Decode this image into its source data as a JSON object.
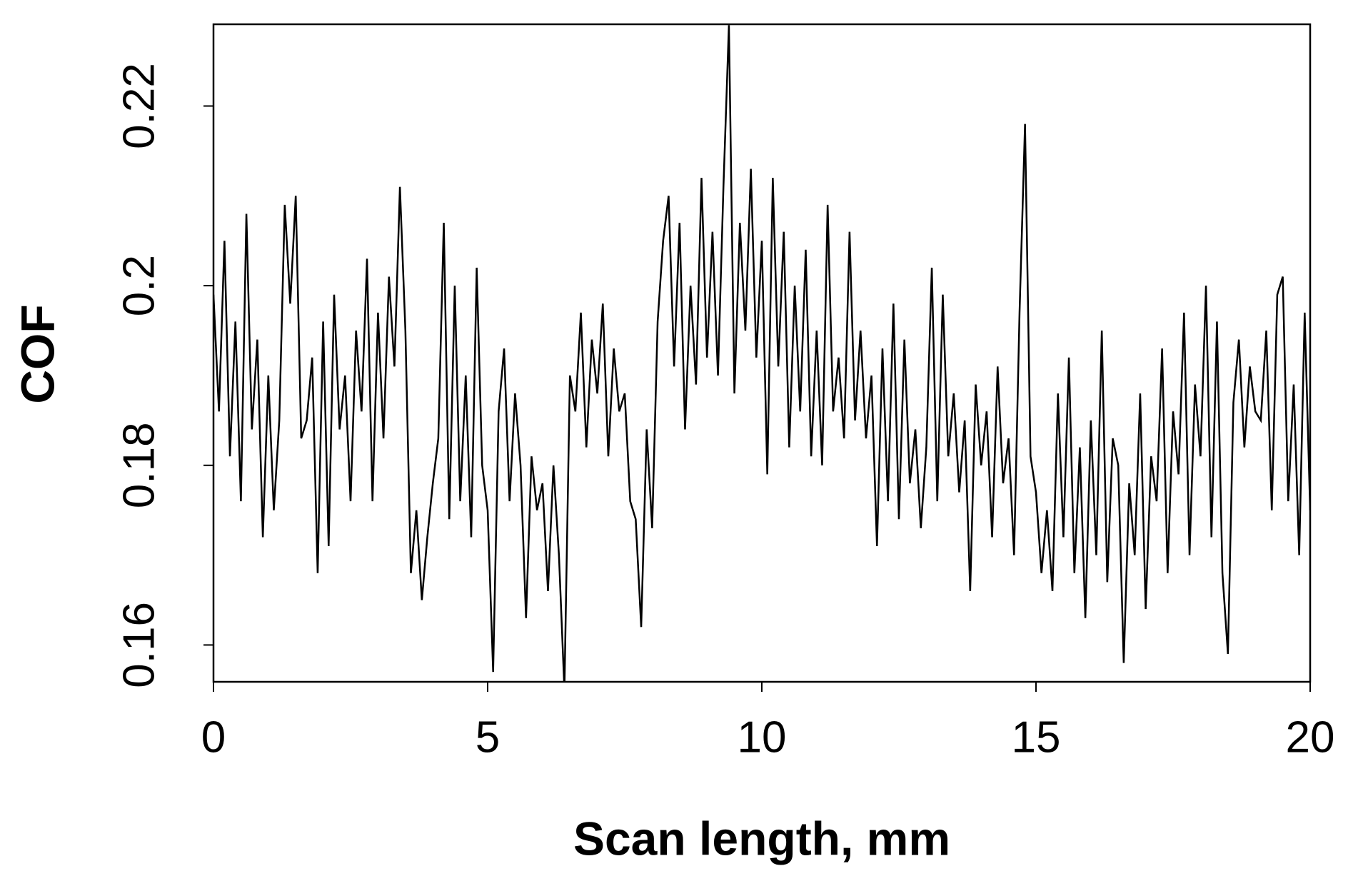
{
  "chart_data": {
    "type": "line",
    "x_label": "Scan length, mm",
    "y_label": "COF",
    "xlim": [
      0,
      20
    ],
    "xticks": [
      0,
      5,
      10,
      15,
      20
    ],
    "ylim": [
      0.1559,
      0.2291
    ],
    "yticks": [
      0.16,
      0.18,
      0.2,
      0.22
    ],
    "color": "#000000",
    "x": [
      0,
      0.1,
      0.2,
      0.3,
      0.4,
      0.5,
      0.6,
      0.7,
      0.8,
      0.9,
      1,
      1.1,
      1.2,
      1.3,
      1.4,
      1.5,
      1.6,
      1.7,
      1.8,
      1.9,
      2,
      2.1,
      2.2,
      2.3,
      2.4,
      2.5,
      2.6,
      2.7,
      2.8,
      2.9,
      3,
      3.1,
      3.2,
      3.3,
      3.4,
      3.5,
      3.6,
      3.7,
      3.8,
      3.9,
      4,
      4.1,
      4.2,
      4.3,
      4.4,
      4.5,
      4.6,
      4.7,
      4.8,
      4.9,
      5,
      5.1,
      5.2,
      5.3,
      5.4,
      5.5,
      5.6,
      5.7,
      5.8,
      5.9,
      6,
      6.1,
      6.2,
      6.3,
      6.4,
      6.5,
      6.6,
      6.7,
      6.8,
      6.9,
      7,
      7.1,
      7.2,
      7.3,
      7.4,
      7.5,
      7.6,
      7.7,
      7.8,
      7.9,
      8,
      8.1,
      8.2,
      8.3,
      8.4,
      8.5,
      8.6,
      8.7,
      8.8,
      8.9,
      9,
      9.1,
      9.2,
      9.3,
      9.4,
      9.5,
      9.6,
      9.7,
      9.8,
      9.9,
      10,
      10.1,
      10.2,
      10.3,
      10.4,
      10.5,
      10.6,
      10.7,
      10.8,
      10.9,
      11,
      11.1,
      11.2,
      11.3,
      11.4,
      11.5,
      11.6,
      11.7,
      11.8,
      11.9,
      12,
      12.1,
      12.2,
      12.3,
      12.4,
      12.5,
      12.6,
      12.7,
      12.8,
      12.9,
      13,
      13.1,
      13.2,
      13.3,
      13.4,
      13.5,
      13.6,
      13.7,
      13.8,
      13.9,
      14,
      14.1,
      14.2,
      14.3,
      14.4,
      14.5,
      14.6,
      14.7,
      14.8,
      14.9,
      15,
      15.1,
      15.2,
      15.3,
      15.4,
      15.5,
      15.6,
      15.7,
      15.8,
      15.9,
      16,
      16.1,
      16.2,
      16.3,
      16.4,
      16.5,
      16.6,
      16.7,
      16.8,
      16.9,
      17,
      17.1,
      17.2,
      17.3,
      17.4,
      17.5,
      17.6,
      17.7,
      17.8,
      17.9,
      18,
      18.1,
      18.2,
      18.3,
      18.4,
      18.5,
      18.6,
      18.7,
      18.8,
      18.9,
      19,
      19.1,
      19.2,
      19.3,
      19.4,
      19.5,
      19.6,
      19.7,
      19.8,
      19.9,
      20
    ],
    "values": [
      0.199,
      0.186,
      0.205,
      0.181,
      0.196,
      0.176,
      0.208,
      0.184,
      0.194,
      0.172,
      0.19,
      0.175,
      0.185,
      0.209,
      0.198,
      0.21,
      0.183,
      0.185,
      0.192,
      0.168,
      0.196,
      0.171,
      0.199,
      0.184,
      0.19,
      0.176,
      0.195,
      0.186,
      0.203,
      0.176,
      0.197,
      0.183,
      0.201,
      0.191,
      0.211,
      0.195,
      0.168,
      0.175,
      0.165,
      0.172,
      0.178,
      0.183,
      0.207,
      0.174,
      0.2,
      0.176,
      0.19,
      0.172,
      0.202,
      0.18,
      0.175,
      0.157,
      0.186,
      0.193,
      0.176,
      0.188,
      0.18,
      0.163,
      0.181,
      0.175,
      0.178,
      0.166,
      0.18,
      0.17,
      0.155,
      0.19,
      0.186,
      0.197,
      0.182,
      0.194,
      0.188,
      0.198,
      0.181,
      0.193,
      0.186,
      0.188,
      0.176,
      0.174,
      0.162,
      0.184,
      0.173,
      0.196,
      0.205,
      0.21,
      0.191,
      0.207,
      0.184,
      0.2,
      0.189,
      0.212,
      0.192,
      0.206,
      0.19,
      0.211,
      0.229,
      0.188,
      0.207,
      0.195,
      0.213,
      0.192,
      0.205,
      0.179,
      0.212,
      0.191,
      0.206,
      0.182,
      0.2,
      0.186,
      0.204,
      0.181,
      0.195,
      0.18,
      0.209,
      0.186,
      0.192,
      0.183,
      0.206,
      0.185,
      0.195,
      0.183,
      0.19,
      0.171,
      0.193,
      0.176,
      0.198,
      0.174,
      0.194,
      0.178,
      0.184,
      0.173,
      0.182,
      0.202,
      0.176,
      0.199,
      0.181,
      0.188,
      0.177,
      0.185,
      0.166,
      0.189,
      0.18,
      0.186,
      0.172,
      0.191,
      0.178,
      0.183,
      0.17,
      0.197,
      0.218,
      0.181,
      0.177,
      0.168,
      0.175,
      0.166,
      0.188,
      0.172,
      0.192,
      0.168,
      0.182,
      0.163,
      0.185,
      0.17,
      0.195,
      0.167,
      0.183,
      0.18,
      0.158,
      0.178,
      0.17,
      0.188,
      0.164,
      0.181,
      0.176,
      0.193,
      0.168,
      0.186,
      0.179,
      0.197,
      0.17,
      0.189,
      0.181,
      0.2,
      0.172,
      0.196,
      0.168,
      0.159,
      0.187,
      0.194,
      0.182,
      0.191,
      0.186,
      0.185,
      0.195,
      0.175,
      0.199,
      0.201,
      0.176,
      0.189,
      0.17,
      0.197,
      0.175
    ]
  }
}
